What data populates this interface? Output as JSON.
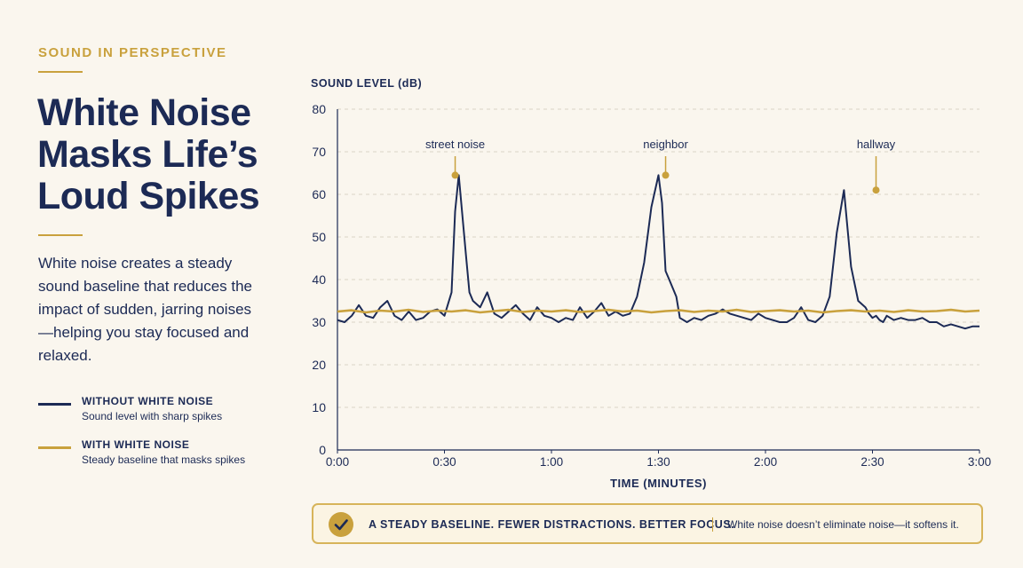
{
  "eyebrow": "SOUND IN PERSPECTIVE",
  "title": "White Noise Masks Life’s Loud Spikes",
  "description": "White noise creates a steady sound baseline that reduces the impact of sudden, jarring noises—helping you stay focused and relaxed.",
  "legend": [
    {
      "title": "WITHOUT WHITE NOISE",
      "subtitle": "Sound level with sharp spikes",
      "color": "#1c2a55"
    },
    {
      "title": "WITH WHITE NOISE",
      "subtitle": "Steady baseline that masks spikes",
      "color": "#c9a13d"
    }
  ],
  "banner": {
    "headline": "A STEADY BASELINE. FEWER DISTRACTIONS. BETTER FOCUS.",
    "note": "White noise doesn’t eliminate noise—it softens it.",
    "icon": "check-icon"
  },
  "colors": {
    "navy": "#1c2a55",
    "gold": "#c9a13d",
    "grid": "#d9d4c7"
  },
  "chart_data": {
    "type": "line",
    "ylabel": "SOUND LEVEL (dB)",
    "xlabel": "TIME (MINUTES)",
    "ylim": [
      0,
      80
    ],
    "xlim": [
      0,
      180
    ],
    "yticks": [
      0,
      10,
      20,
      30,
      40,
      50,
      60,
      70,
      80
    ],
    "xticks": [
      {
        "value": 0,
        "label": "0:00"
      },
      {
        "value": 30,
        "label": "0:30"
      },
      {
        "value": 60,
        "label": "1:00"
      },
      {
        "value": 90,
        "label": "1:30"
      },
      {
        "value": 120,
        "label": "2:00"
      },
      {
        "value": 150,
        "label": "2:30"
      },
      {
        "value": 180,
        "label": "3:00"
      }
    ],
    "grid": true,
    "annotations": [
      {
        "label": "street noise",
        "x": 33,
        "y": 64.5
      },
      {
        "label": "neighbor",
        "x": 92,
        "y": 64.5
      },
      {
        "label": "hallway",
        "x": 151,
        "y": 61
      }
    ],
    "series": [
      {
        "name": "WITHOUT WHITE NOISE",
        "x": [
          0,
          2,
          4,
          6,
          8,
          10,
          12,
          14,
          16,
          18,
          20,
          22,
          24,
          26,
          28,
          30,
          32,
          33,
          34,
          36,
          37,
          38,
          40,
          42,
          44,
          46,
          48,
          50,
          52,
          54,
          56,
          58,
          60,
          62,
          64,
          66,
          68,
          70,
          72,
          74,
          76,
          78,
          80,
          82,
          84,
          86,
          88,
          90,
          91,
          92,
          93,
          94,
          95,
          96,
          98,
          100,
          102,
          104,
          106,
          108,
          110,
          112,
          114,
          116,
          118,
          120,
          122,
          124,
          126,
          128,
          130,
          132,
          134,
          136,
          138,
          140,
          142,
          144,
          146,
          148,
          149,
          150,
          151,
          152,
          153,
          154,
          156,
          158,
          160,
          162,
          164,
          166,
          168,
          170,
          172,
          174,
          176,
          178,
          180
        ],
        "y": [
          30.5,
          30,
          31.5,
          34,
          31.5,
          31,
          33.5,
          35,
          31.5,
          30.5,
          32.5,
          30.5,
          31,
          32.5,
          33,
          31.5,
          37,
          56,
          64.5,
          46,
          37,
          35,
          33.5,
          37,
          32,
          31,
          32.5,
          34,
          32,
          30.5,
          33.5,
          31.5,
          31,
          30,
          31,
          30.5,
          33.5,
          31,
          32.5,
          34.5,
          31.5,
          32.5,
          31.5,
          32,
          36,
          44,
          57,
          64.5,
          58,
          42,
          40,
          38,
          36,
          31,
          30,
          31,
          30.5,
          31.5,
          32,
          33,
          32,
          31.5,
          31,
          30.5,
          32,
          31,
          30.5,
          30,
          30,
          31,
          33.5,
          30.5,
          30,
          31.5,
          36,
          51,
          61,
          43,
          35,
          33.5,
          32,
          31,
          31.5,
          30.5,
          30,
          31.5,
          30.5,
          31,
          30.5,
          30.5,
          31,
          30,
          30,
          29,
          29.5,
          29,
          28.5,
          29,
          29
        ]
      },
      {
        "name": "WITH WHITE NOISE",
        "x": [
          0,
          4,
          8,
          12,
          16,
          20,
          24,
          28,
          32,
          36,
          40,
          44,
          48,
          52,
          56,
          60,
          64,
          68,
          72,
          76,
          80,
          84,
          88,
          92,
          96,
          100,
          104,
          108,
          112,
          116,
          120,
          124,
          128,
          132,
          136,
          140,
          144,
          148,
          152,
          156,
          160,
          164,
          168,
          172,
          176,
          180
        ],
        "y": [
          32.5,
          32.8,
          32.3,
          32.7,
          32.5,
          32.9,
          32.4,
          32.7,
          32.5,
          32.8,
          32.3,
          32.6,
          32.9,
          32.4,
          32.7,
          32.5,
          32.8,
          32.4,
          32.6,
          32.9,
          32.5,
          32.7,
          32.3,
          32.6,
          32.8,
          32.4,
          32.7,
          32.5,
          32.9,
          32.4,
          32.6,
          32.8,
          32.5,
          32.7,
          32.3,
          32.6,
          32.8,
          32.5,
          32.7,
          32.4,
          32.8,
          32.5,
          32.6,
          32.9,
          32.5,
          32.7
        ]
      }
    ]
  }
}
